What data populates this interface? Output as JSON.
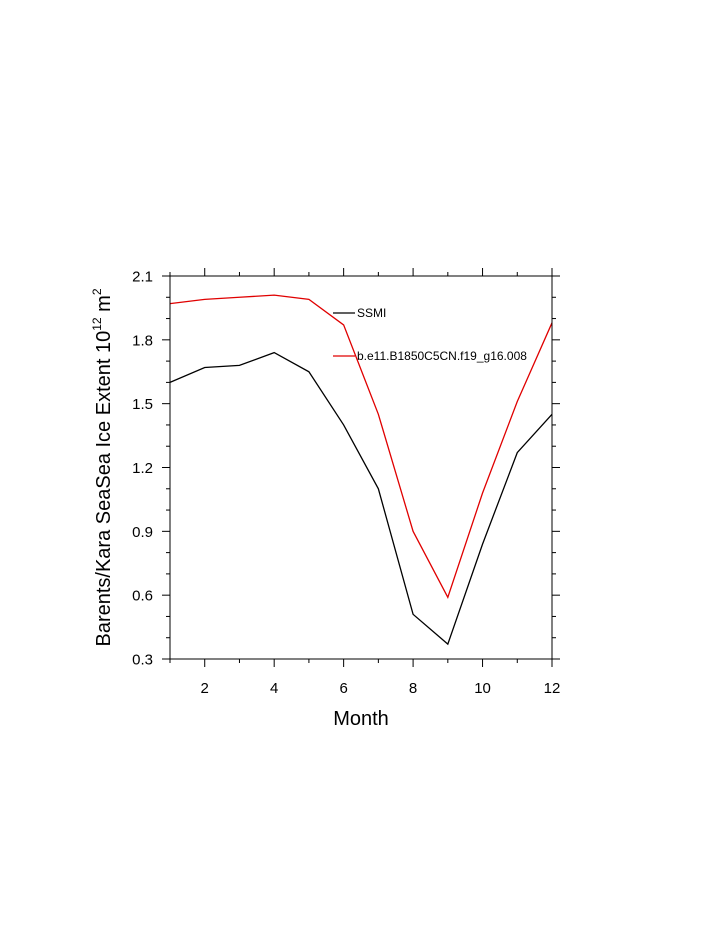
{
  "chart_data": {
    "type": "line",
    "title": "",
    "xlabel": "Month",
    "ylabel_main": "Barents/Kara SeaSea Ice Extent 10",
    "ylabel_sup": "12",
    "ylabel_unit": " m",
    "ylabel_unit_sup": "2",
    "ylabel_full": "Barents/Kara SeaSea Ice Extent 10^12 m^2",
    "xlim": [
      1,
      12
    ],
    "ylim": [
      0.3,
      2.1
    ],
    "xticks": [
      2,
      4,
      6,
      8,
      10,
      12
    ],
    "xtick_labels": [
      "2",
      "4",
      "6",
      "8",
      "10",
      "12"
    ],
    "xminor": [
      1,
      3,
      5,
      7,
      9,
      11
    ],
    "yticks": [
      0.3,
      0.6,
      0.9,
      1.2,
      1.5,
      1.8,
      2.1
    ],
    "ytick_labels": [
      "0.3",
      "0.6",
      "0.9",
      "1.2",
      "1.5",
      "1.8",
      "2.1"
    ],
    "yminor_step": 0.1,
    "grid": false,
    "legend_position": "top-right",
    "x": [
      1,
      2,
      3,
      4,
      5,
      6,
      7,
      8,
      9,
      10,
      11,
      12
    ],
    "series": [
      {
        "name": "SSMI",
        "color": "#000000",
        "values": [
          1.6,
          1.67,
          1.68,
          1.74,
          1.65,
          1.4,
          1.1,
          0.51,
          0.37,
          0.84,
          1.27,
          1.45
        ]
      },
      {
        "name": "b.e11.B1850C5CN.f19_g16.008",
        "color": "#e00000",
        "values": [
          1.97,
          1.99,
          2.0,
          2.01,
          1.99,
          1.87,
          1.45,
          0.9,
          0.59,
          1.08,
          1.51,
          1.88
        ]
      }
    ]
  }
}
